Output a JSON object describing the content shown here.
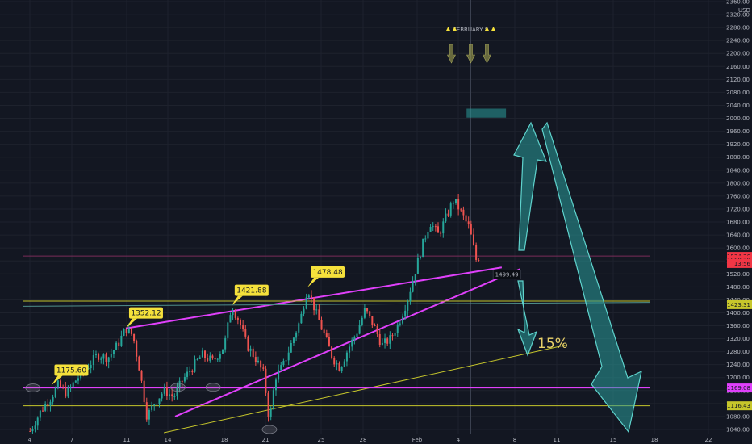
{
  "chart_data": {
    "type": "candlestick",
    "y_unit": "USD",
    "ylim": [
      1025,
      2365
    ],
    "y_ticks": [
      2360,
      2320,
      2280,
      2240,
      2200,
      2160,
      2120,
      2080,
      2040,
      2000,
      1960,
      1920,
      1880,
      1840,
      1800,
      1760,
      1720,
      1680,
      1640,
      1600,
      1560,
      1520,
      1480,
      1440,
      1400,
      1360,
      1320,
      1280,
      1240,
      1200,
      1160,
      1120,
      1080,
      1040
    ],
    "x_ticks": [
      "4",
      "7",
      "11",
      "14",
      "18",
      "21",
      "25",
      "28",
      "Feb",
      "4",
      "8",
      "11",
      "15",
      "18",
      "22"
    ],
    "series_path": [
      [
        0.0,
        1035
      ],
      [
        0.8,
        1100
      ],
      [
        1.5,
        1140
      ],
      [
        2.0,
        1178
      ],
      [
        2.6,
        1150
      ],
      [
        3.2,
        1190
      ],
      [
        4.0,
        1230
      ],
      [
        4.8,
        1270
      ],
      [
        5.5,
        1260
      ],
      [
        6.2,
        1300
      ],
      [
        6.8,
        1352
      ],
      [
        7.3,
        1330
      ],
      [
        7.8,
        1220
      ],
      [
        8.3,
        1080
      ],
      [
        8.8,
        1120
      ],
      [
        9.5,
        1160
      ],
      [
        10.2,
        1140
      ],
      [
        10.8,
        1190
      ],
      [
        11.5,
        1230
      ],
      [
        12.2,
        1270
      ],
      [
        13.0,
        1250
      ],
      [
        13.8,
        1300
      ],
      [
        14.3,
        1421
      ],
      [
        14.8,
        1380
      ],
      [
        15.4,
        1300
      ],
      [
        16.0,
        1260
      ],
      [
        16.6,
        1210
      ],
      [
        17.0,
        1060
      ],
      [
        17.4,
        1200
      ],
      [
        18.0,
        1240
      ],
      [
        18.6,
        1310
      ],
      [
        19.2,
        1380
      ],
      [
        19.7,
        1478
      ],
      [
        20.3,
        1400
      ],
      [
        20.9,
        1330
      ],
      [
        21.5,
        1260
      ],
      [
        22.0,
        1230
      ],
      [
        22.6,
        1290
      ],
      [
        23.2,
        1340
      ],
      [
        23.8,
        1410
      ],
      [
        24.4,
        1360
      ],
      [
        25.0,
        1300
      ],
      [
        25.6,
        1320
      ],
      [
        26.2,
        1370
      ],
      [
        26.8,
        1440
      ],
      [
        27.3,
        1520
      ],
      [
        27.8,
        1600
      ],
      [
        28.4,
        1680
      ],
      [
        29.0,
        1640
      ],
      [
        29.6,
        1700
      ],
      [
        30.1,
        1750
      ],
      [
        30.6,
        1710
      ],
      [
        31.2,
        1660
      ],
      [
        31.7,
        1560
      ],
      [
        31.9,
        1575
      ]
    ],
    "callouts": [
      {
        "label": "1175.60",
        "x": 1.5,
        "y": 1175.6
      },
      {
        "label": "1352.12",
        "x": 6.8,
        "y": 1352.12
      },
      {
        "label": "1421.88",
        "x": 14.3,
        "y": 1421.88
      },
      {
        "label": "1478.48",
        "x": 19.7,
        "y": 1478.48
      }
    ],
    "lines": [
      {
        "from": [
          6.8,
          1352
        ],
        "to": [
          33.5,
          1540
        ],
        "color": "#e040fb"
      },
      {
        "from": [
          10.3,
          1080
        ],
        "to": [
          34.8,
          1535
        ],
        "color": "#e040fb"
      },
      {
        "from": [
          9.5,
          1030
        ],
        "to": [
          38.0,
          1300
        ],
        "color": "#c6c62b"
      },
      {
        "from": [
          -0.5,
          1436
        ],
        "to": [
          44.0,
          1436
        ],
        "color": "#c6c62b"
      },
      {
        "from": [
          -0.5,
          1420
        ],
        "to": [
          44.0,
          1432
        ],
        "color": "#4f8f8a"
      },
      {
        "from": [
          -0.5,
          1169
        ],
        "to": [
          44.0,
          1169
        ],
        "color": "#e040fb"
      },
      {
        "from": [
          -0.5,
          1113
        ],
        "to": [
          44.0,
          1113
        ],
        "color": "#c6c62b"
      },
      {
        "from": [
          -0.5,
          1575
        ],
        "to": [
          44.0,
          1575
        ],
        "color": "#7a2c5a"
      }
    ],
    "price_labels": [
      {
        "label": "1574.26",
        "y": 1574,
        "color": "#f23645"
      },
      {
        "label": "1568.38",
        "y": 1563,
        "color": "#f23645"
      },
      {
        "label": "13:56",
        "y": 1552,
        "color": "#f23645"
      },
      {
        "label": "1423.31",
        "y": 1425,
        "color": "#c6c62b"
      },
      {
        "label": "1169.08",
        "y": 1168,
        "color": "#e040fb"
      },
      {
        "label": "1116.43",
        "y": 1113,
        "color": "#c6c62b"
      }
    ],
    "current_price_box": {
      "label": "1499.49",
      "x": 33.0,
      "y": 1512
    },
    "event_label": {
      "text": "FEBRUARY 8",
      "x": 31.3
    },
    "target_zone": {
      "x0": 31.0,
      "x1": 33.8,
      "y0": 2030,
      "y1": 2002
    },
    "projection_label": "15%"
  },
  "colors": {
    "background": "#131722",
    "grid": "#1e222d",
    "up": "#26a69a",
    "down": "#ef5350",
    "callout": "#f5e13b",
    "projection": "#2a9d9a"
  }
}
